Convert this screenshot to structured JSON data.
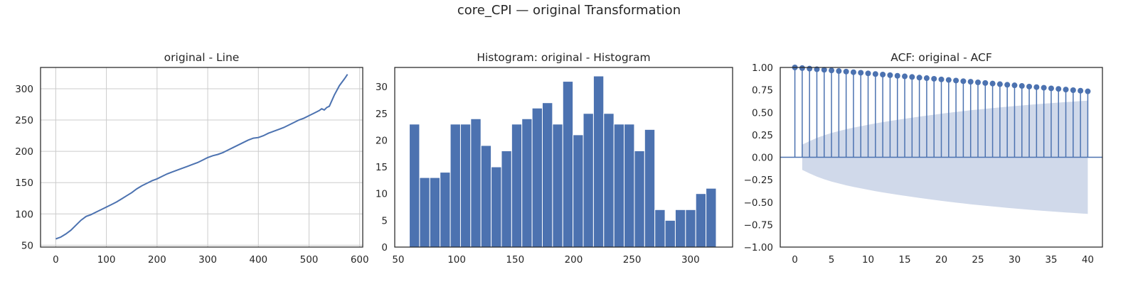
{
  "suptitle": "core_CPI — original Transformation",
  "colors": {
    "series": "#4c72b0",
    "band": "#d0d9ea",
    "axis": "#262626",
    "grid": "#cccccc"
  },
  "chart_data": [
    {
      "type": "line",
      "title": "original - Line",
      "xlabel": "",
      "ylabel": "",
      "xlim": [
        -30,
        606
      ],
      "ylim": [
        47,
        334
      ],
      "xticks": [
        0,
        100,
        200,
        300,
        400,
        500,
        600
      ],
      "yticks": [
        50,
        100,
        150,
        200,
        250,
        300
      ],
      "grid": true,
      "x": [
        0,
        10,
        20,
        30,
        40,
        50,
        60,
        70,
        80,
        90,
        100,
        110,
        120,
        130,
        140,
        150,
        160,
        170,
        180,
        190,
        200,
        210,
        220,
        230,
        240,
        250,
        260,
        270,
        280,
        290,
        300,
        310,
        320,
        330,
        340,
        350,
        360,
        370,
        380,
        390,
        400,
        410,
        420,
        430,
        440,
        450,
        460,
        470,
        480,
        490,
        500,
        510,
        520,
        525,
        530,
        535,
        540,
        550,
        560,
        570,
        576
      ],
      "y": [
        60,
        63,
        68,
        74,
        82,
        90,
        96,
        99,
        103,
        107,
        111,
        115,
        119,
        124,
        129,
        134,
        140,
        145,
        149,
        153,
        156,
        160,
        164,
        167,
        170,
        173,
        176,
        179,
        182,
        186,
        190,
        193,
        195,
        198,
        202,
        206,
        210,
        214,
        218,
        221,
        222,
        225,
        229,
        232,
        235,
        238,
        242,
        246,
        250,
        253,
        257,
        261,
        265,
        268,
        266,
        270,
        272,
        290,
        305,
        316,
        323
      ]
    },
    {
      "type": "bar",
      "title": "Histogram: original - Histogram",
      "xlabel": "",
      "ylabel": "",
      "xlim": [
        47,
        336
      ],
      "ylim": [
        0,
        33.6
      ],
      "xticks": [
        50,
        100,
        150,
        200,
        250,
        300
      ],
      "yticks": [
        0,
        5,
        10,
        15,
        20,
        25,
        30
      ],
      "grid": false,
      "bin_start": 59.5,
      "bin_width": 8.75,
      "values": [
        23,
        13,
        13,
        14,
        23,
        23,
        24,
        19,
        15,
        18,
        23,
        24,
        26,
        27,
        23,
        31,
        21,
        25,
        32,
        25,
        23,
        23,
        18,
        22,
        7,
        5,
        7,
        7,
        10,
        11
      ]
    },
    {
      "type": "scatter",
      "subtype": "stem",
      "title": "ACF: original - ACF",
      "xlabel": "",
      "ylabel": "",
      "xlim": [
        -2,
        42
      ],
      "ylim": [
        -1.0,
        1.0
      ],
      "xticks": [
        0,
        5,
        10,
        15,
        20,
        25,
        30,
        35,
        40
      ],
      "yticks": [
        -1.0,
        -0.75,
        -0.5,
        -0.25,
        0.0,
        0.25,
        0.5,
        0.75,
        1.0
      ],
      "ytick_labels": [
        "−1.00",
        "−0.75",
        "−0.50",
        "−0.25",
        "0.00",
        "0.25",
        "0.50",
        "0.75",
        "1.00"
      ],
      "grid": false,
      "lags": [
        0,
        1,
        2,
        3,
        4,
        5,
        6,
        7,
        8,
        9,
        10,
        11,
        12,
        13,
        14,
        15,
        16,
        17,
        18,
        19,
        20,
        21,
        22,
        23,
        24,
        25,
        26,
        27,
        28,
        29,
        30,
        31,
        32,
        33,
        34,
        35,
        36,
        37,
        38,
        39,
        40
      ],
      "values": [
        1.0,
        0.993,
        0.987,
        0.98,
        0.974,
        0.967,
        0.96,
        0.954,
        0.947,
        0.941,
        0.934,
        0.927,
        0.921,
        0.914,
        0.907,
        0.901,
        0.894,
        0.887,
        0.881,
        0.874,
        0.867,
        0.861,
        0.854,
        0.847,
        0.841,
        0.834,
        0.827,
        0.821,
        0.814,
        0.807,
        0.801,
        0.794,
        0.787,
        0.781,
        0.774,
        0.767,
        0.761,
        0.754,
        0.747,
        0.741,
        0.734
      ],
      "confint_upper": [
        0.1,
        0.14,
        0.18,
        0.215,
        0.245,
        0.27,
        0.292,
        0.312,
        0.33,
        0.346,
        0.362,
        0.377,
        0.391,
        0.404,
        0.417,
        0.429,
        0.441,
        0.452,
        0.463,
        0.474,
        0.485,
        0.495,
        0.505,
        0.514,
        0.523,
        0.532,
        0.54,
        0.548,
        0.556,
        0.563,
        0.57,
        0.577,
        0.584,
        0.591,
        0.597,
        0.603,
        0.609,
        0.615,
        0.62,
        0.625,
        0.63
      ]
    }
  ]
}
